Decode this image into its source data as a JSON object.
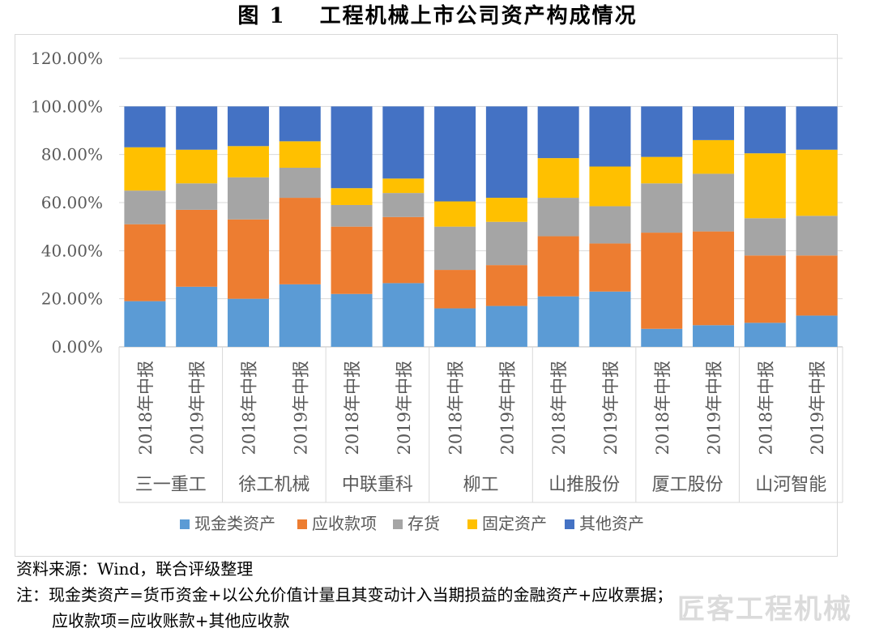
{
  "title": {
    "figure_no": "图 1",
    "text": "工程机械上市公司资产构成情况"
  },
  "chart_data": {
    "type": "bar",
    "stacked": true,
    "ylim": [
      0,
      120
    ],
    "yticks": [
      "0.00%",
      "20.00%",
      "40.00%",
      "60.00%",
      "80.00%",
      "100.00%",
      "120.00%"
    ],
    "gridlines": true,
    "legend_position": "bottom",
    "groups": [
      "三一重工",
      "徐工机械",
      "中联重科",
      "柳工",
      "山推股份",
      "厦工股份",
      "山河智能"
    ],
    "periods": [
      "2018年中报",
      "2019年中报"
    ],
    "series": [
      {
        "name": "现金类资产",
        "color": "#5B9BD5",
        "values": [
          19,
          25,
          20,
          26,
          22,
          26.5,
          16,
          17,
          21,
          23,
          7.5,
          9,
          10,
          13
        ]
      },
      {
        "name": "应收款项",
        "color": "#ED7D31",
        "values": [
          32,
          32,
          33,
          36,
          28,
          27.5,
          16,
          17,
          25,
          20,
          40,
          39,
          28,
          25
        ]
      },
      {
        "name": "存货",
        "color": "#A5A5A5",
        "values": [
          14,
          11,
          17.5,
          12.5,
          9,
          10,
          18,
          18,
          16,
          15.5,
          20.5,
          24,
          15.5,
          16.5
        ]
      },
      {
        "name": "固定资产",
        "color": "#FFC000",
        "values": [
          18,
          14,
          13,
          11,
          7,
          6,
          10.5,
          10,
          16.5,
          16.5,
          11,
          14,
          27,
          27.5
        ]
      },
      {
        "name": "其他资产",
        "color": "#4472C4",
        "values": [
          17,
          18,
          16.5,
          14.5,
          34,
          30,
          39.5,
          38,
          21.5,
          25,
          21,
          14,
          19.5,
          18
        ]
      }
    ]
  },
  "notes": {
    "source": "资料来源：Wind，联合评级整理",
    "note_line1": "注：现金类资产=货币资金+以公允价值计量且其变动计入当期损益的金融资产+应收票据；",
    "note_line2": "应收款项=应收账款+其他应收款"
  },
  "watermark": "匠客工程机械"
}
